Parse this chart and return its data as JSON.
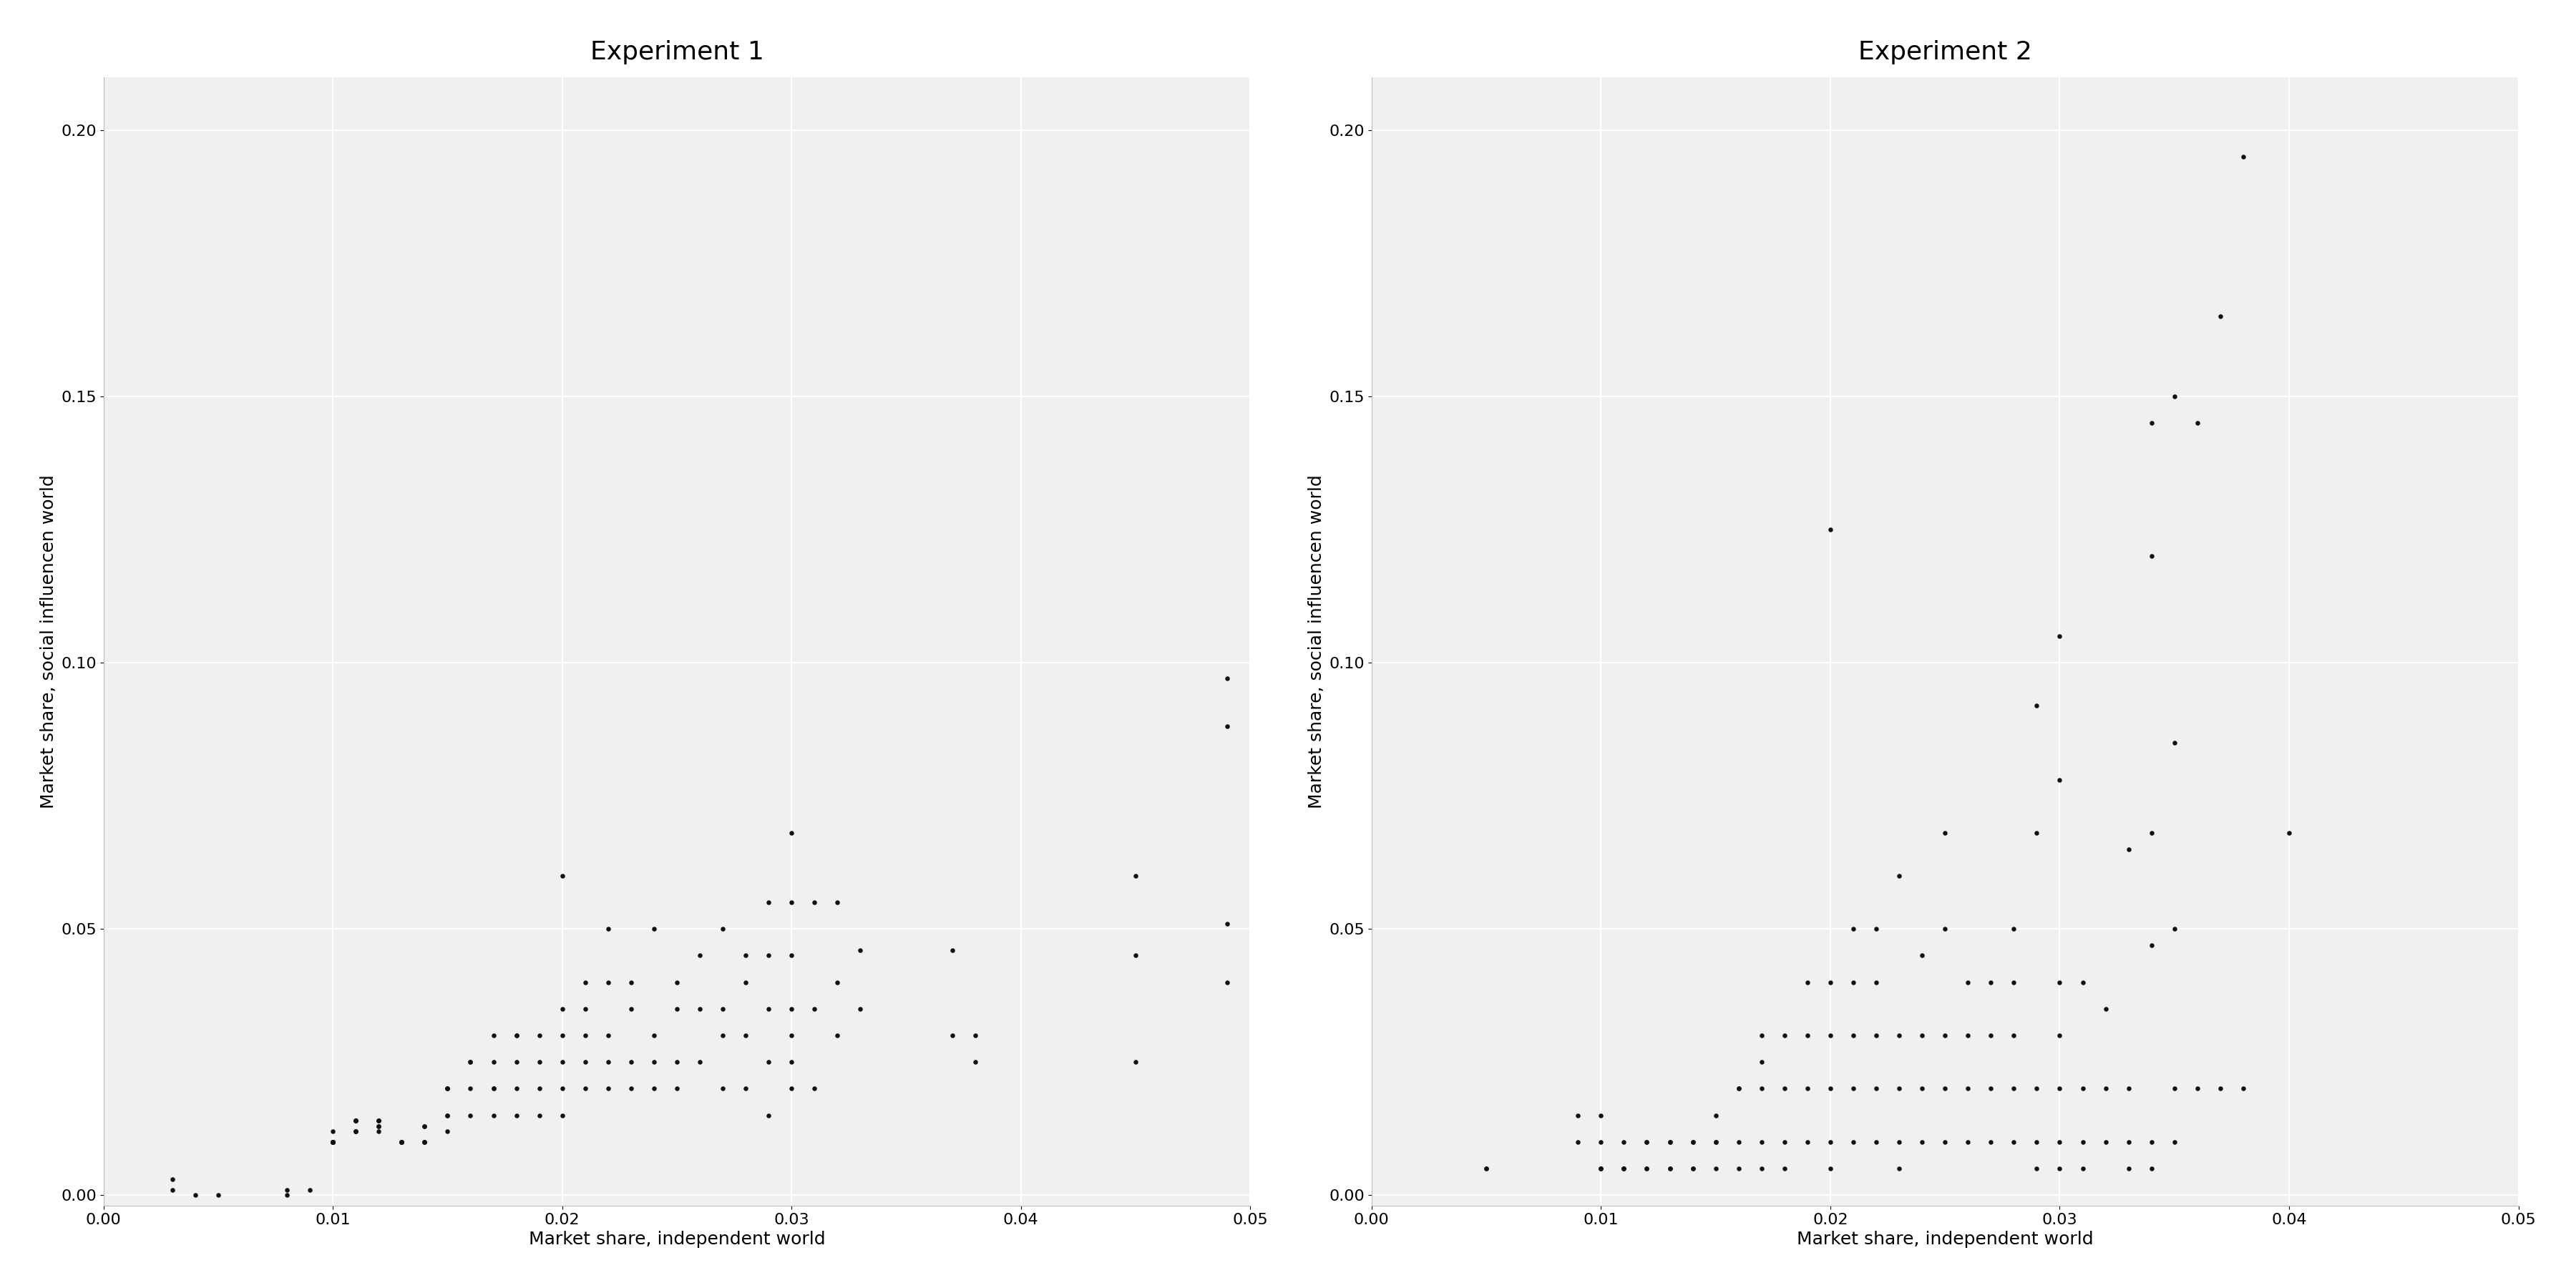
{
  "exp1": {
    "title": "Experiment 1",
    "x": [
      0.003,
      0.003,
      0.004,
      0.005,
      0.008,
      0.008,
      0.009,
      0.01,
      0.01,
      0.01,
      0.01,
      0.01,
      0.01,
      0.01,
      0.01,
      0.011,
      0.011,
      0.011,
      0.011,
      0.011,
      0.011,
      0.011,
      0.012,
      0.012,
      0.012,
      0.012,
      0.012,
      0.012,
      0.013,
      0.013,
      0.013,
      0.013,
      0.013,
      0.014,
      0.014,
      0.014,
      0.014,
      0.014,
      0.015,
      0.015,
      0.015,
      0.015,
      0.015,
      0.015,
      0.016,
      0.016,
      0.016,
      0.016,
      0.017,
      0.017,
      0.017,
      0.017,
      0.017,
      0.018,
      0.018,
      0.018,
      0.018,
      0.018,
      0.019,
      0.019,
      0.019,
      0.019,
      0.02,
      0.02,
      0.02,
      0.02,
      0.02,
      0.02,
      0.021,
      0.021,
      0.021,
      0.021,
      0.021,
      0.022,
      0.022,
      0.022,
      0.022,
      0.022,
      0.023,
      0.023,
      0.023,
      0.023,
      0.024,
      0.024,
      0.024,
      0.024,
      0.025,
      0.025,
      0.025,
      0.025,
      0.026,
      0.026,
      0.026,
      0.027,
      0.027,
      0.027,
      0.027,
      0.028,
      0.028,
      0.028,
      0.028,
      0.029,
      0.029,
      0.029,
      0.029,
      0.029,
      0.03,
      0.03,
      0.03,
      0.03,
      0.03,
      0.03,
      0.03,
      0.031,
      0.031,
      0.031,
      0.032,
      0.032,
      0.032,
      0.033,
      0.033,
      0.037,
      0.037,
      0.038,
      0.038,
      0.045,
      0.045,
      0.045,
      0.049,
      0.049,
      0.049,
      0.049
    ],
    "y": [
      0.001,
      0.003,
      0.0,
      0.0,
      0.001,
      0.0,
      0.001,
      0.01,
      0.01,
      0.01,
      0.012,
      0.01,
      0.01,
      0.01,
      0.01,
      0.014,
      0.014,
      0.012,
      0.014,
      0.012,
      0.014,
      0.012,
      0.012,
      0.014,
      0.013,
      0.014,
      0.013,
      0.014,
      0.01,
      0.01,
      0.01,
      0.01,
      0.01,
      0.01,
      0.013,
      0.013,
      0.01,
      0.01,
      0.012,
      0.015,
      0.015,
      0.02,
      0.02,
      0.02,
      0.015,
      0.02,
      0.025,
      0.025,
      0.015,
      0.02,
      0.02,
      0.025,
      0.03,
      0.015,
      0.02,
      0.025,
      0.03,
      0.03,
      0.015,
      0.02,
      0.025,
      0.03,
      0.015,
      0.02,
      0.025,
      0.03,
      0.035,
      0.06,
      0.02,
      0.025,
      0.03,
      0.035,
      0.04,
      0.02,
      0.025,
      0.03,
      0.04,
      0.05,
      0.02,
      0.025,
      0.035,
      0.04,
      0.02,
      0.025,
      0.03,
      0.05,
      0.02,
      0.025,
      0.035,
      0.04,
      0.025,
      0.035,
      0.045,
      0.02,
      0.03,
      0.035,
      0.05,
      0.02,
      0.03,
      0.04,
      0.045,
      0.015,
      0.025,
      0.035,
      0.045,
      0.055,
      0.02,
      0.025,
      0.03,
      0.035,
      0.045,
      0.055,
      0.068,
      0.02,
      0.035,
      0.055,
      0.03,
      0.04,
      0.055,
      0.035,
      0.046,
      0.03,
      0.046,
      0.025,
      0.03,
      0.025,
      0.045,
      0.06,
      0.04,
      0.051,
      0.088,
      0.097
    ]
  },
  "exp2": {
    "title": "Experiment 2",
    "x": [
      0.005,
      0.005,
      0.009,
      0.009,
      0.01,
      0.01,
      0.01,
      0.01,
      0.01,
      0.011,
      0.011,
      0.011,
      0.011,
      0.012,
      0.012,
      0.012,
      0.012,
      0.013,
      0.013,
      0.013,
      0.013,
      0.014,
      0.014,
      0.014,
      0.014,
      0.015,
      0.015,
      0.015,
      0.015,
      0.016,
      0.016,
      0.016,
      0.016,
      0.017,
      0.017,
      0.017,
      0.017,
      0.017,
      0.018,
      0.018,
      0.018,
      0.018,
      0.019,
      0.019,
      0.019,
      0.019,
      0.02,
      0.02,
      0.02,
      0.02,
      0.02,
      0.02,
      0.021,
      0.021,
      0.021,
      0.021,
      0.021,
      0.022,
      0.022,
      0.022,
      0.022,
      0.022,
      0.023,
      0.023,
      0.023,
      0.023,
      0.023,
      0.024,
      0.024,
      0.024,
      0.024,
      0.025,
      0.025,
      0.025,
      0.025,
      0.025,
      0.026,
      0.026,
      0.026,
      0.026,
      0.027,
      0.027,
      0.027,
      0.027,
      0.028,
      0.028,
      0.028,
      0.028,
      0.028,
      0.029,
      0.029,
      0.029,
      0.029,
      0.029,
      0.03,
      0.03,
      0.03,
      0.03,
      0.03,
      0.03,
      0.03,
      0.031,
      0.031,
      0.031,
      0.031,
      0.032,
      0.032,
      0.032,
      0.033,
      0.033,
      0.033,
      0.033,
      0.034,
      0.034,
      0.034,
      0.034,
      0.034,
      0.034,
      0.035,
      0.035,
      0.035,
      0.035,
      0.035,
      0.036,
      0.036,
      0.037,
      0.037,
      0.038,
      0.038,
      0.04
    ],
    "y": [
      0.005,
      0.005,
      0.01,
      0.015,
      0.005,
      0.005,
      0.005,
      0.01,
      0.015,
      0.005,
      0.005,
      0.005,
      0.01,
      0.005,
      0.005,
      0.01,
      0.01,
      0.005,
      0.005,
      0.01,
      0.01,
      0.005,
      0.005,
      0.01,
      0.01,
      0.005,
      0.01,
      0.01,
      0.015,
      0.005,
      0.01,
      0.02,
      0.02,
      0.005,
      0.01,
      0.02,
      0.025,
      0.03,
      0.005,
      0.01,
      0.02,
      0.03,
      0.01,
      0.02,
      0.03,
      0.04,
      0.005,
      0.01,
      0.02,
      0.03,
      0.04,
      0.125,
      0.01,
      0.02,
      0.03,
      0.04,
      0.05,
      0.01,
      0.02,
      0.03,
      0.04,
      0.05,
      0.005,
      0.01,
      0.02,
      0.03,
      0.06,
      0.01,
      0.02,
      0.03,
      0.045,
      0.01,
      0.02,
      0.03,
      0.05,
      0.068,
      0.01,
      0.02,
      0.03,
      0.04,
      0.01,
      0.02,
      0.03,
      0.04,
      0.01,
      0.02,
      0.03,
      0.04,
      0.05,
      0.005,
      0.01,
      0.02,
      0.068,
      0.092,
      0.005,
      0.01,
      0.02,
      0.03,
      0.04,
      0.078,
      0.105,
      0.005,
      0.01,
      0.02,
      0.04,
      0.01,
      0.02,
      0.035,
      0.005,
      0.01,
      0.02,
      0.065,
      0.005,
      0.01,
      0.047,
      0.068,
      0.12,
      0.145,
      0.01,
      0.02,
      0.05,
      0.085,
      0.15,
      0.02,
      0.145,
      0.02,
      0.165,
      0.02,
      0.195,
      0.068
    ]
  },
  "xlabel": "Market share, independent world",
  "ylabel": "Market share, social influencen world",
  "xlim": [
    0.0,
    0.05
  ],
  "ylim": [
    -0.002,
    0.21
  ],
  "bg_color": "#f0f0f0",
  "dot_color": "#111111",
  "dot_size": 22,
  "title_fontsize": 26,
  "label_fontsize": 18,
  "tick_fontsize": 16
}
